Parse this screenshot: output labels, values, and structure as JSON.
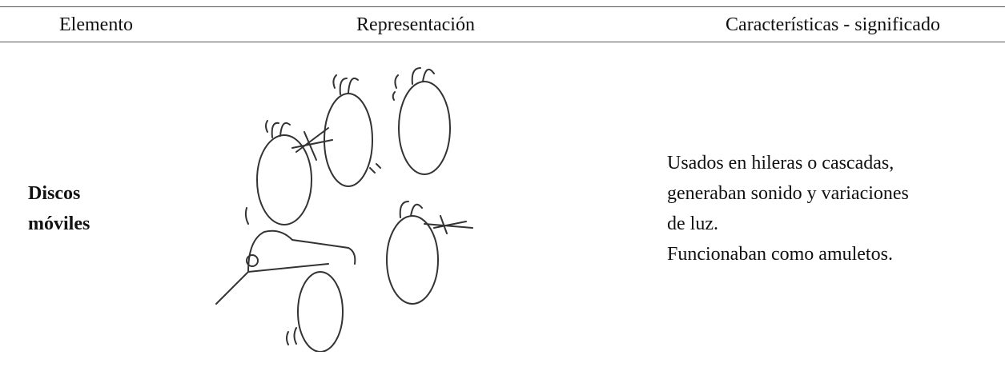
{
  "table": {
    "header": [
      "Elemento",
      "Representación",
      "Características - significado"
    ],
    "rows": [
      {
        "element": [
          "Discos",
          "móviles"
        ],
        "description": [
          "Usados en hileras o cascadas,",
          "generaban sonido y variaciones",
          "de luz.",
          "Funcionaban como amuletos."
        ]
      }
    ]
  }
}
